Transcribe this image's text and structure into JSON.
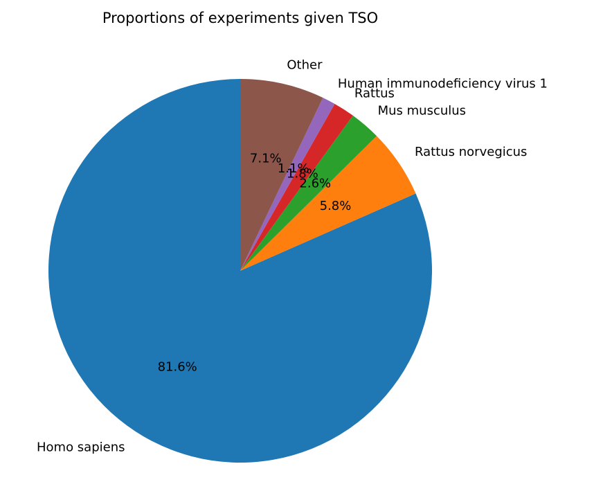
{
  "chart_data": {
    "type": "pie",
    "title": "Proportions of experiments given TSO",
    "start_angle_deg": 90,
    "direction": "counterclockwise",
    "slices": [
      {
        "label": "Homo sapiens",
        "value": 81.6,
        "pct_label": "81.6%",
        "color": "#1f77b4"
      },
      {
        "label": "Rattus norvegicus",
        "value": 5.8,
        "pct_label": "5.8%",
        "color": "#ff7f0e"
      },
      {
        "label": "Mus musculus",
        "value": 2.6,
        "pct_label": "2.6%",
        "color": "#2ca02c"
      },
      {
        "label": "Rattus",
        "value": 1.8,
        "pct_label": "1.8%",
        "color": "#d62728"
      },
      {
        "label": "Human immunodeficiency virus 1",
        "value": 1.1,
        "pct_label": "1.1%",
        "color": "#9467bd"
      },
      {
        "label": "Other",
        "value": 7.1,
        "pct_label": "7.1%",
        "color": "#8c564b"
      }
    ]
  }
}
